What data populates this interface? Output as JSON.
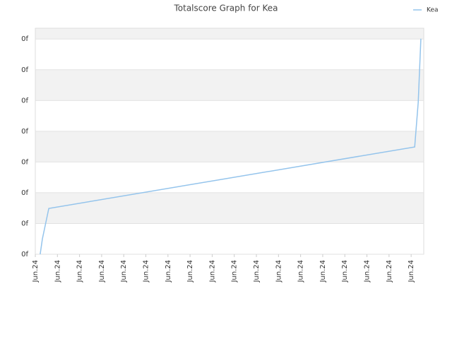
{
  "chart_data": {
    "type": "line",
    "title": "Totalscore Graph for Kea",
    "x": [
      0.22,
      0.32,
      0.61,
      17.16,
      17.32,
      17.44
    ],
    "xlim": [
      0,
      17.57
    ],
    "xticks": [
      {
        "value": 0,
        "label": "Jun.24"
      },
      {
        "value": 1,
        "label": "Jun.24"
      },
      {
        "value": 2,
        "label": "Jun.24"
      },
      {
        "value": 3,
        "label": "Jun.24"
      },
      {
        "value": 4,
        "label": "Jun.24"
      },
      {
        "value": 5,
        "label": "Jun.24"
      },
      {
        "value": 6,
        "label": "Jun.24"
      },
      {
        "value": 7,
        "label": "Jun.24"
      },
      {
        "value": 8,
        "label": "Jun.24"
      },
      {
        "value": 9,
        "label": "Jun.24"
      },
      {
        "value": 10,
        "label": "Jun.24"
      },
      {
        "value": 11,
        "label": "Jun.24"
      },
      {
        "value": 12,
        "label": "Jun.24"
      },
      {
        "value": 13,
        "label": "Jun.24"
      },
      {
        "value": 14,
        "label": "Jun.24"
      },
      {
        "value": 15,
        "label": "Jun.24"
      },
      {
        "value": 16,
        "label": "Jun.24"
      },
      {
        "value": 17,
        "label": "Jun.24"
      }
    ],
    "ylim": [
      0,
      7.35
    ],
    "yticks": [
      {
        "value": 0,
        "label": "0f"
      },
      {
        "value": 1,
        "label": "0f"
      },
      {
        "value": 2,
        "label": "0f"
      },
      {
        "value": 3,
        "label": "0f"
      },
      {
        "value": 4,
        "label": "0f"
      },
      {
        "value": 5,
        "label": "0f"
      },
      {
        "value": 6,
        "label": "0f"
      },
      {
        "value": 7,
        "label": "0f"
      }
    ],
    "grid": true,
    "legend": "top-right",
    "series": [
      {
        "name": "Kea",
        "color": "#94c4ec",
        "values": [
          0,
          0.5,
          1.49,
          3.49,
          4.94,
          7.01
        ]
      }
    ]
  }
}
